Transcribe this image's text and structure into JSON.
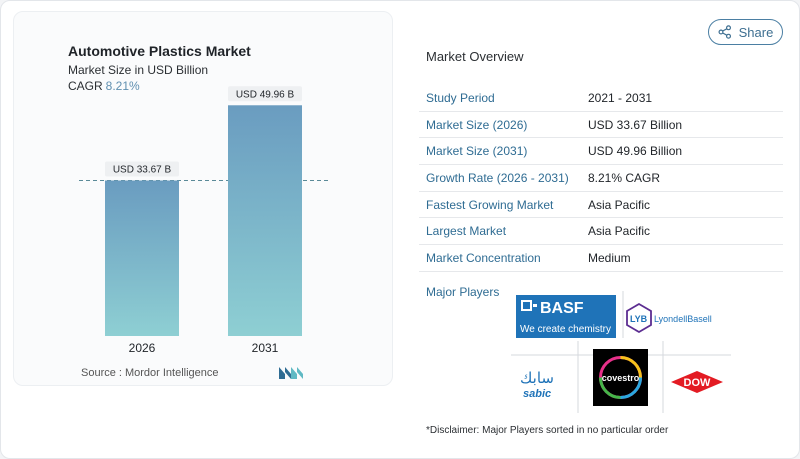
{
  "share": {
    "label": "Share",
    "icon": "share-icon"
  },
  "chart_data": {
    "type": "bar",
    "title": "Automotive Plastics Market",
    "subtitle": "Market Size in USD Billion",
    "cagr_label": "CAGR",
    "cagr_value": "8.21%",
    "categories": [
      "2026",
      "2031"
    ],
    "values": [
      33.67,
      49.96
    ],
    "value_labels": [
      "USD 33.67 B",
      "USD 49.96 B"
    ],
    "ylim": [
      0,
      55
    ],
    "grid": false,
    "reference_line": "dashed at 2026 value",
    "bar_color_top": "#6a9cc0",
    "bar_color_bottom": "#8ecfd3"
  },
  "source": {
    "label": "Source :",
    "name": "Mordor Intelligence"
  },
  "overview": {
    "title": "Market Overview",
    "rows": [
      {
        "label": "Study Period",
        "value": "2021 - 2031"
      },
      {
        "label": "Market Size (2026)",
        "value": "USD 33.67 Billion"
      },
      {
        "label": "Market Size (2031)",
        "value": "USD 49.96 Billion"
      },
      {
        "label": "Growth Rate (2026 - 2031)",
        "value": "8.21% CAGR"
      },
      {
        "label": "Fastest Growing Market",
        "value": "Asia Pacific"
      },
      {
        "label": "Largest Market",
        "value": "Asia Pacific"
      },
      {
        "label": "Market Concentration",
        "value": "Medium"
      }
    ]
  },
  "players": {
    "label": "Major Players",
    "logos": {
      "basf": {
        "name": "BASF",
        "tagline": "We create chemistry"
      },
      "lyb": {
        "mark": "LYB",
        "name": "LyondellBasell"
      },
      "sabic": {
        "arabic": "سابك",
        "latin": "sabic"
      },
      "covestro": {
        "name": "covestro"
      },
      "dow": {
        "name": "DOW"
      }
    }
  },
  "disclaimer": "*Disclaimer: Major Players sorted in no particular order"
}
